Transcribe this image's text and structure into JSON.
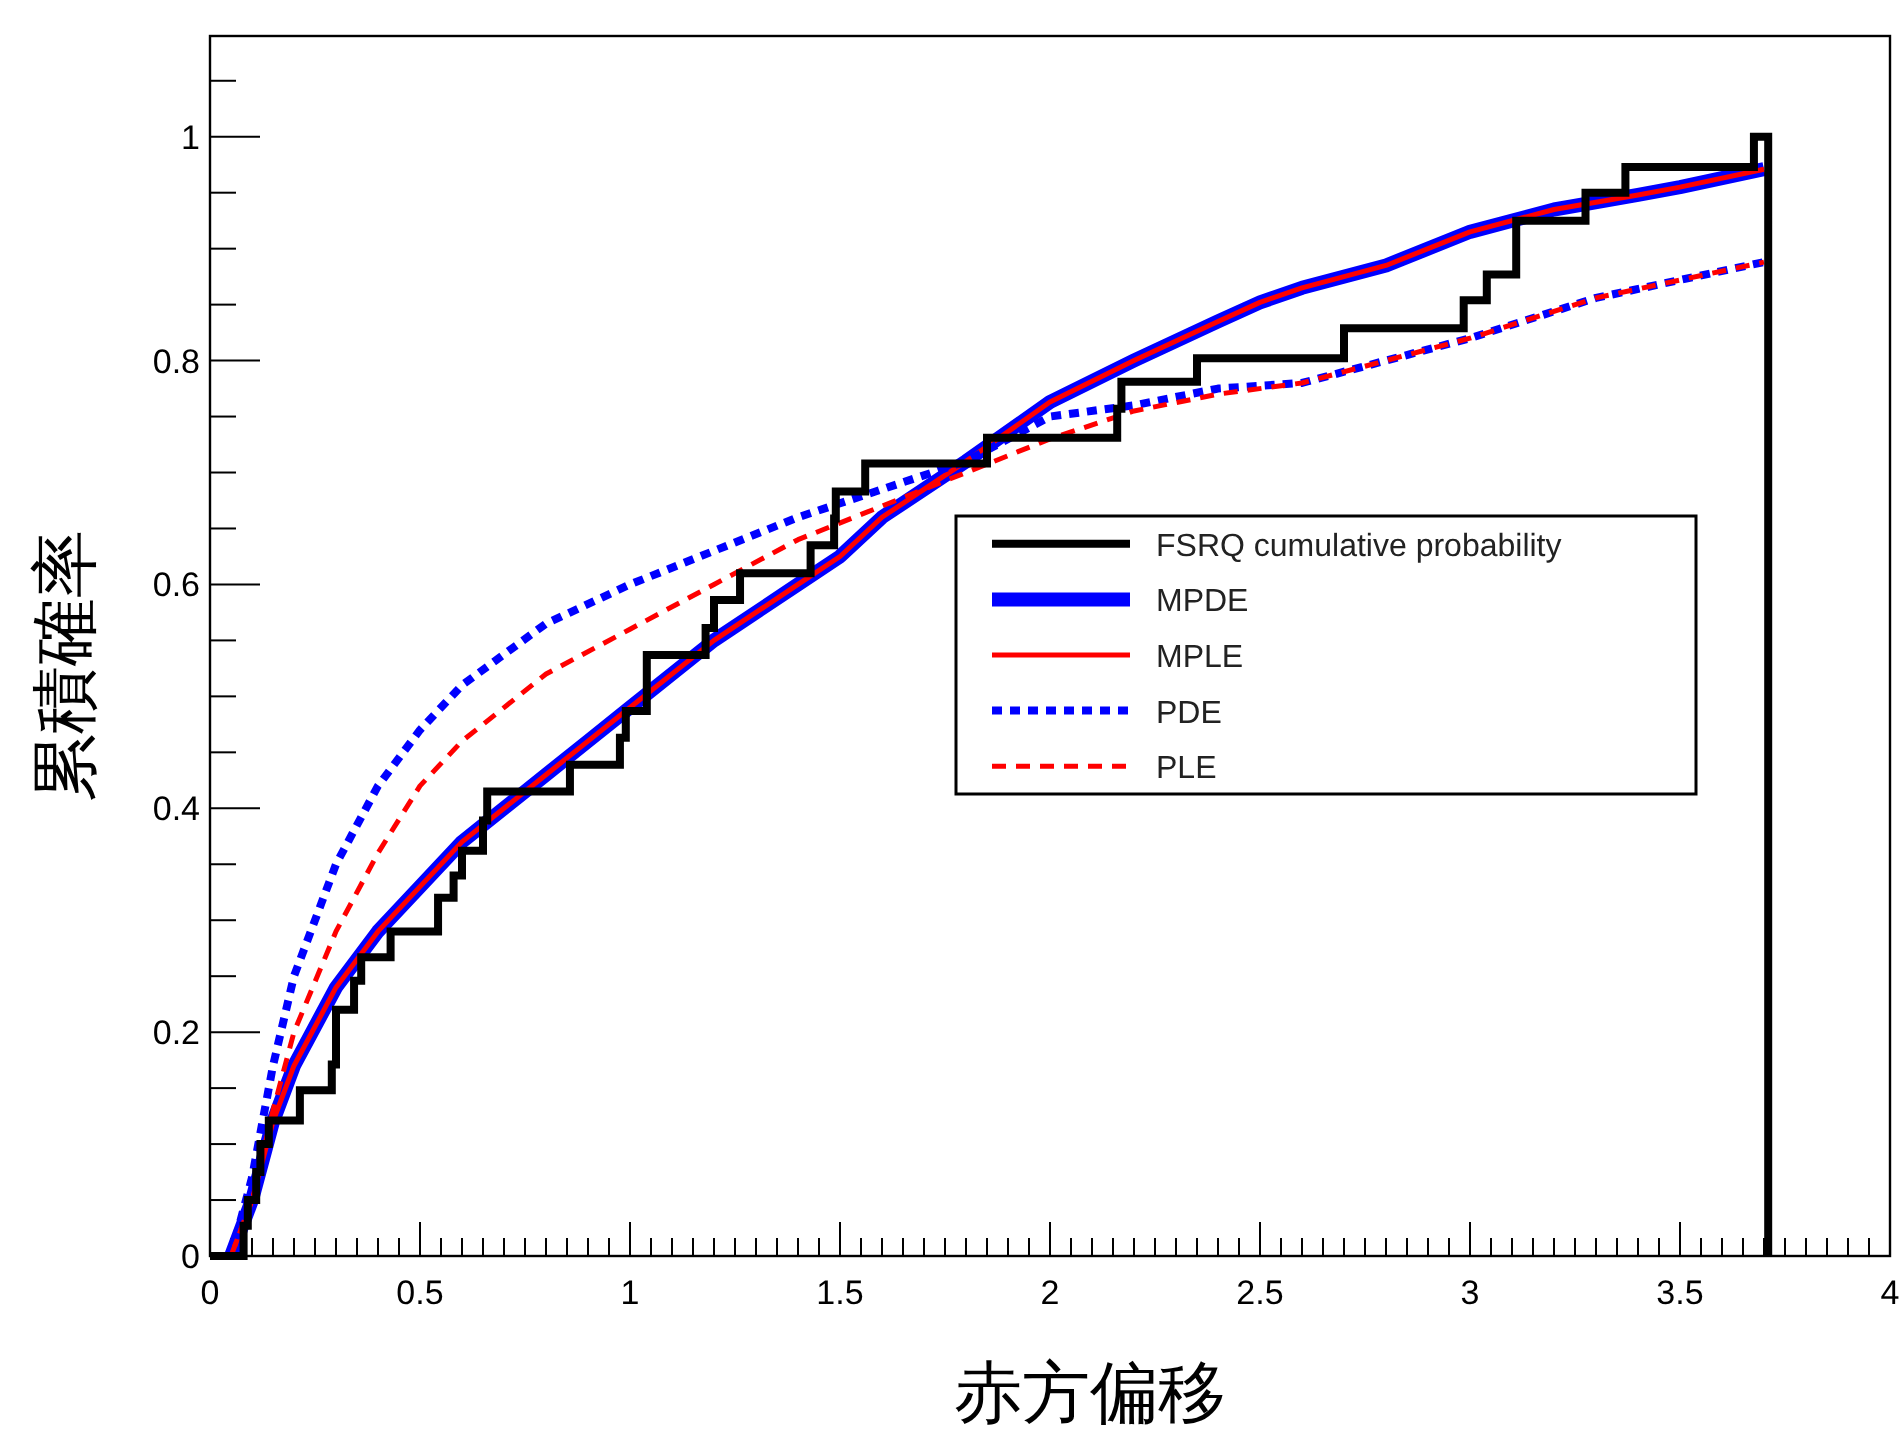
{
  "chart_data": {
    "type": "line",
    "xlabel": "赤方偏移",
    "ylabel": "累積確率",
    "xlim": [
      0,
      4
    ],
    "ylim": [
      0,
      1.09
    ],
    "xticks": [
      0,
      0.5,
      1,
      1.5,
      2,
      2.5,
      3,
      3.5,
      4
    ],
    "yticks": [
      0,
      0.2,
      0.4,
      0.6,
      0.8,
      1
    ],
    "grid": false,
    "legend": "right",
    "marker": "none",
    "series": [
      {
        "name": "FSRQ cumulative probability",
        "type": "step",
        "color": "#000000",
        "line_style": "solid",
        "x": [
          0,
          0.08,
          0.09,
          0.11,
          0.12,
          0.14,
          0.214,
          0.29,
          0.3,
          0.343,
          0.36,
          0.43,
          0.543,
          0.58,
          0.6,
          0.65,
          0.66,
          0.857,
          0.976,
          0.99,
          1.04,
          1.18,
          1.2,
          1.262,
          1.43,
          1.486,
          1.49,
          1.56,
          1.85,
          2.16,
          2.17,
          2.35,
          2.7,
          2.985,
          3.04,
          3.11,
          3.275,
          3.37,
          3.676,
          3.71
        ],
        "values": [
          0,
          0.027,
          0.05,
          0.075,
          0.1,
          0.121,
          0.148,
          0.171,
          0.22,
          0.246,
          0.267,
          0.29,
          0.32,
          0.34,
          0.362,
          0.389,
          0.415,
          0.439,
          0.463,
          0.487,
          0.537,
          0.561,
          0.586,
          0.61,
          0.635,
          0.659,
          0.683,
          0.708,
          0.731,
          0.757,
          0.781,
          0.802,
          0.829,
          0.854,
          0.877,
          0.925,
          0.95,
          0.973,
          1.0,
          0
        ]
      },
      {
        "name": "MPDE",
        "color": "#0000ff",
        "line_style": "solid",
        "x": [
          0.05,
          0.1,
          0.15,
          0.2,
          0.3,
          0.4,
          0.5,
          0.6,
          0.7,
          0.8,
          0.9,
          1.0,
          1.2,
          1.4,
          1.5,
          1.6,
          1.8,
          2.0,
          2.2,
          2.4,
          2.5,
          2.6,
          2.8,
          3.0,
          3.2,
          3.4,
          3.5,
          3.7
        ],
        "values": [
          0,
          0.05,
          0.12,
          0.17,
          0.24,
          0.29,
          0.33,
          0.37,
          0.4,
          0.43,
          0.46,
          0.49,
          0.55,
          0.6,
          0.625,
          0.66,
          0.71,
          0.763,
          0.8,
          0.835,
          0.852,
          0.865,
          0.885,
          0.915,
          0.935,
          0.948,
          0.955,
          0.971
        ]
      },
      {
        "name": "MPLE",
        "color": "#ff0000",
        "line_style": "solid",
        "x": [
          0.05,
          0.1,
          0.15,
          0.2,
          0.3,
          0.4,
          0.5,
          0.6,
          0.7,
          0.8,
          0.9,
          1.0,
          1.2,
          1.4,
          1.5,
          1.6,
          1.8,
          2.0,
          2.2,
          2.4,
          2.5,
          2.6,
          2.8,
          3.0,
          3.2,
          3.4,
          3.5,
          3.7
        ],
        "values": [
          0,
          0.05,
          0.12,
          0.17,
          0.24,
          0.29,
          0.33,
          0.37,
          0.4,
          0.43,
          0.46,
          0.49,
          0.55,
          0.6,
          0.625,
          0.66,
          0.71,
          0.763,
          0.8,
          0.835,
          0.852,
          0.865,
          0.885,
          0.915,
          0.935,
          0.948,
          0.955,
          0.971
        ]
      },
      {
        "name": "PDE",
        "color": "#0000ff",
        "line_style": "dotted",
        "x": [
          0.05,
          0.1,
          0.15,
          0.2,
          0.3,
          0.4,
          0.5,
          0.6,
          0.8,
          1.0,
          1.2,
          1.4,
          1.6,
          1.8,
          2.0,
          2.2,
          2.4,
          2.6,
          2.8,
          3.0,
          3.3,
          3.7
        ],
        "values": [
          0,
          0.07,
          0.17,
          0.25,
          0.35,
          0.42,
          0.47,
          0.51,
          0.565,
          0.6,
          0.63,
          0.66,
          0.685,
          0.71,
          0.75,
          0.76,
          0.775,
          0.78,
          0.8,
          0.82,
          0.856,
          0.888
        ]
      },
      {
        "name": "PLE",
        "color": "#ff0000",
        "line_style": "dashed",
        "x": [
          0.05,
          0.1,
          0.15,
          0.2,
          0.3,
          0.4,
          0.5,
          0.6,
          0.8,
          1.0,
          1.2,
          1.4,
          1.6,
          1.8,
          2.0,
          2.2,
          2.4,
          2.6,
          2.8,
          3.0,
          3.3,
          3.7
        ],
        "values": [
          0,
          0.05,
          0.13,
          0.2,
          0.29,
          0.36,
          0.42,
          0.46,
          0.52,
          0.56,
          0.6,
          0.64,
          0.67,
          0.7,
          0.73,
          0.755,
          0.77,
          0.78,
          0.8,
          0.82,
          0.856,
          0.888
        ]
      }
    ]
  }
}
